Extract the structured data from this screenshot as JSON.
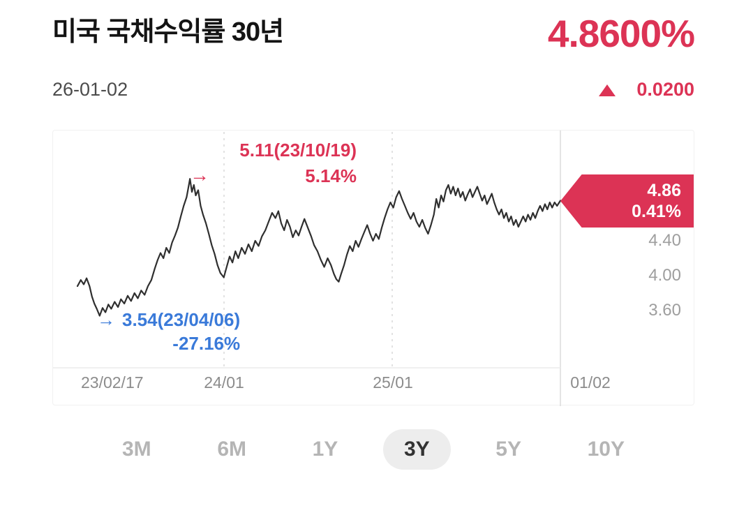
{
  "header": {
    "title": "미국 국채수익률 30년",
    "date": "26-01-02",
    "value": "4.8600%",
    "change": "0.0200",
    "change_direction": "up"
  },
  "chart": {
    "high_annotation": {
      "arrow": "→",
      "line1": "5.11(23/10/19)",
      "line2": "5.14%"
    },
    "low_annotation": {
      "arrow": "→",
      "line1": "3.54(23/04/06)",
      "line2": "-27.16%"
    },
    "badge": {
      "value": "4.86",
      "change": "0.41%"
    },
    "y_labels": [
      "4.40",
      "4.00",
      "3.60"
    ],
    "x_labels": [
      "23/02/17",
      "24/01",
      "25/01",
      "01/02"
    ]
  },
  "period_tabs": [
    {
      "label": "3M",
      "selected": false
    },
    {
      "label": "6M",
      "selected": false
    },
    {
      "label": "1Y",
      "selected": false
    },
    {
      "label": "3Y",
      "selected": true
    },
    {
      "label": "5Y",
      "selected": false
    },
    {
      "label": "10Y",
      "selected": false
    }
  ],
  "colors": {
    "accent_red": "#dc3355",
    "accent_blue": "#3a7ad9",
    "line_color": "#2f2f2f",
    "grid_color": "#d8d8d8"
  },
  "chart_data": {
    "type": "line",
    "title": "미국 국채수익률 30년 (3Y)",
    "x_range": [
      "23/02/17",
      "26/01/02"
    ],
    "x_tick_labels": [
      "23/02/17",
      "24/01",
      "25/01",
      "01/02"
    ],
    "x_tick_positions": [
      0.0,
      0.303,
      0.652,
      1.0
    ],
    "y_ticks": [
      3.6,
      4.0,
      4.4
    ],
    "ylim": [
      3.4,
      5.25
    ],
    "grid": "vertical-dashed",
    "legend": "none",
    "high": {
      "value": 5.11,
      "date": "23/10/19",
      "change_pct": 5.14
    },
    "low": {
      "value": 3.54,
      "date": "23/04/06",
      "change_pct": -27.16
    },
    "last": {
      "value": 4.86,
      "change_abs": 0.02,
      "change_pct": 0.41
    },
    "points": [
      [
        0.0,
        3.88
      ],
      [
        0.007,
        3.95
      ],
      [
        0.013,
        3.9
      ],
      [
        0.019,
        3.97
      ],
      [
        0.025,
        3.88
      ],
      [
        0.03,
        3.76
      ],
      [
        0.035,
        3.68
      ],
      [
        0.04,
        3.62
      ],
      [
        0.046,
        3.54
      ],
      [
        0.052,
        3.63
      ],
      [
        0.058,
        3.58
      ],
      [
        0.064,
        3.67
      ],
      [
        0.07,
        3.62
      ],
      [
        0.077,
        3.7
      ],
      [
        0.084,
        3.64
      ],
      [
        0.09,
        3.73
      ],
      [
        0.097,
        3.68
      ],
      [
        0.104,
        3.77
      ],
      [
        0.111,
        3.71
      ],
      [
        0.118,
        3.8
      ],
      [
        0.125,
        3.74
      ],
      [
        0.132,
        3.83
      ],
      [
        0.139,
        3.78
      ],
      [
        0.146,
        3.88
      ],
      [
        0.153,
        3.95
      ],
      [
        0.16,
        4.08
      ],
      [
        0.166,
        4.18
      ],
      [
        0.172,
        4.26
      ],
      [
        0.178,
        4.2
      ],
      [
        0.184,
        4.32
      ],
      [
        0.19,
        4.26
      ],
      [
        0.196,
        4.38
      ],
      [
        0.202,
        4.46
      ],
      [
        0.208,
        4.55
      ],
      [
        0.214,
        4.68
      ],
      [
        0.22,
        4.8
      ],
      [
        0.226,
        4.9
      ],
      [
        0.229,
        4.99
      ],
      [
        0.233,
        5.11
      ],
      [
        0.237,
        4.96
      ],
      [
        0.241,
        5.04
      ],
      [
        0.245,
        4.92
      ],
      [
        0.25,
        4.98
      ],
      [
        0.255,
        4.8
      ],
      [
        0.26,
        4.7
      ],
      [
        0.266,
        4.6
      ],
      [
        0.272,
        4.48
      ],
      [
        0.278,
        4.35
      ],
      [
        0.284,
        4.25
      ],
      [
        0.29,
        4.12
      ],
      [
        0.296,
        4.03
      ],
      [
        0.303,
        3.98
      ],
      [
        0.309,
        4.1
      ],
      [
        0.315,
        4.22
      ],
      [
        0.321,
        4.15
      ],
      [
        0.327,
        4.28
      ],
      [
        0.333,
        4.2
      ],
      [
        0.34,
        4.32
      ],
      [
        0.347,
        4.25
      ],
      [
        0.354,
        4.36
      ],
      [
        0.361,
        4.28
      ],
      [
        0.368,
        4.4
      ],
      [
        0.375,
        4.34
      ],
      [
        0.382,
        4.45
      ],
      [
        0.389,
        4.52
      ],
      [
        0.396,
        4.62
      ],
      [
        0.403,
        4.72
      ],
      [
        0.41,
        4.66
      ],
      [
        0.416,
        4.74
      ],
      [
        0.422,
        4.6
      ],
      [
        0.428,
        4.52
      ],
      [
        0.434,
        4.64
      ],
      [
        0.44,
        4.56
      ],
      [
        0.446,
        4.44
      ],
      [
        0.452,
        4.52
      ],
      [
        0.458,
        4.46
      ],
      [
        0.464,
        4.56
      ],
      [
        0.47,
        4.65
      ],
      [
        0.477,
        4.55
      ],
      [
        0.484,
        4.45
      ],
      [
        0.49,
        4.35
      ],
      [
        0.497,
        4.28
      ],
      [
        0.504,
        4.18
      ],
      [
        0.511,
        4.1
      ],
      [
        0.518,
        4.2
      ],
      [
        0.525,
        4.12
      ],
      [
        0.531,
        4.02
      ],
      [
        0.536,
        3.96
      ],
      [
        0.541,
        3.93
      ],
      [
        0.546,
        4.02
      ],
      [
        0.552,
        4.12
      ],
      [
        0.558,
        4.24
      ],
      [
        0.564,
        4.34
      ],
      [
        0.57,
        4.28
      ],
      [
        0.576,
        4.4
      ],
      [
        0.582,
        4.33
      ],
      [
        0.588,
        4.42
      ],
      [
        0.594,
        4.5
      ],
      [
        0.6,
        4.58
      ],
      [
        0.606,
        4.48
      ],
      [
        0.612,
        4.4
      ],
      [
        0.618,
        4.48
      ],
      [
        0.624,
        4.42
      ],
      [
        0.63,
        4.55
      ],
      [
        0.636,
        4.66
      ],
      [
        0.642,
        4.76
      ],
      [
        0.648,
        4.84
      ],
      [
        0.654,
        4.78
      ],
      [
        0.66,
        4.9
      ],
      [
        0.666,
        4.97
      ],
      [
        0.672,
        4.88
      ],
      [
        0.678,
        4.8
      ],
      [
        0.684,
        4.72
      ],
      [
        0.69,
        4.65
      ],
      [
        0.696,
        4.72
      ],
      [
        0.702,
        4.62
      ],
      [
        0.708,
        4.56
      ],
      [
        0.714,
        4.64
      ],
      [
        0.72,
        4.55
      ],
      [
        0.726,
        4.48
      ],
      [
        0.732,
        4.58
      ],
      [
        0.738,
        4.7
      ],
      [
        0.743,
        4.88
      ],
      [
        0.748,
        4.78
      ],
      [
        0.753,
        4.92
      ],
      [
        0.758,
        4.85
      ],
      [
        0.763,
        4.98
      ],
      [
        0.768,
        5.04
      ],
      [
        0.773,
        4.94
      ],
      [
        0.778,
        5.02
      ],
      [
        0.783,
        4.92
      ],
      [
        0.788,
        5.0
      ],
      [
        0.793,
        4.9
      ],
      [
        0.798,
        4.96
      ],
      [
        0.803,
        4.86
      ],
      [
        0.808,
        4.93
      ],
      [
        0.813,
        4.99
      ],
      [
        0.818,
        4.9
      ],
      [
        0.823,
        4.96
      ],
      [
        0.828,
        5.02
      ],
      [
        0.833,
        4.94
      ],
      [
        0.838,
        4.86
      ],
      [
        0.843,
        4.92
      ],
      [
        0.848,
        4.82
      ],
      [
        0.853,
        4.88
      ],
      [
        0.858,
        4.94
      ],
      [
        0.863,
        4.84
      ],
      [
        0.868,
        4.76
      ],
      [
        0.873,
        4.7
      ],
      [
        0.878,
        4.76
      ],
      [
        0.883,
        4.66
      ],
      [
        0.888,
        4.72
      ],
      [
        0.893,
        4.62
      ],
      [
        0.898,
        4.68
      ],
      [
        0.903,
        4.58
      ],
      [
        0.908,
        4.64
      ],
      [
        0.913,
        4.56
      ],
      [
        0.918,
        4.62
      ],
      [
        0.923,
        4.68
      ],
      [
        0.928,
        4.62
      ],
      [
        0.933,
        4.7
      ],
      [
        0.938,
        4.64
      ],
      [
        0.943,
        4.72
      ],
      [
        0.948,
        4.66
      ],
      [
        0.953,
        4.74
      ],
      [
        0.958,
        4.8
      ],
      [
        0.963,
        4.74
      ],
      [
        0.968,
        4.82
      ],
      [
        0.973,
        4.76
      ],
      [
        0.978,
        4.84
      ],
      [
        0.983,
        4.78
      ],
      [
        0.988,
        4.84
      ],
      [
        0.993,
        4.8
      ],
      [
        1.0,
        4.86
      ]
    ]
  }
}
